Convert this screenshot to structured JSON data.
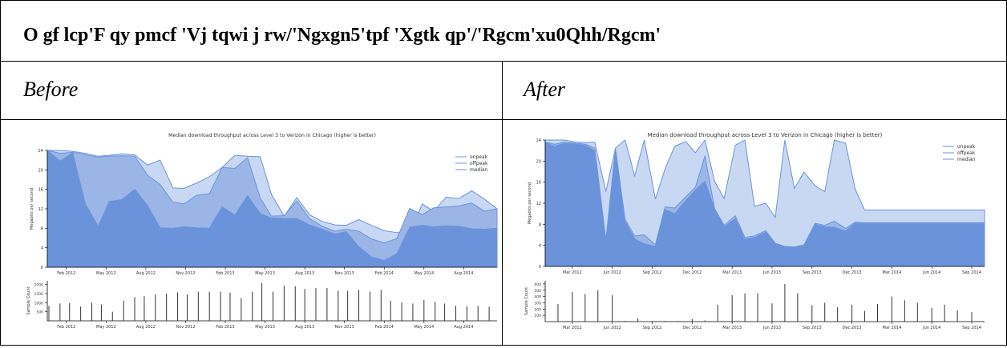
{
  "header": {
    "title": "O gf lcp'F qy pmcf 'Vj tqwi j rw/'Ngxgn5'tpf 'Xgtk qp'/'Rgcm'xu0Qhh/Rgcm'"
  },
  "columns": {
    "before_label": "Before",
    "after_label": "After"
  },
  "colors": {
    "onpeak": "#c9d8f2",
    "offpeak": "#9bb6e6",
    "median": "#6b93dc",
    "line": "#6b93dc",
    "bar": "#333333"
  },
  "chart_data": [
    {
      "type": "area",
      "panel": "before",
      "title": "Median download throughput across Level 3 to Verizon in Chicago (higher is better)",
      "ylabel": "Megabits per second",
      "ylim": [
        0,
        24
      ],
      "yticks": [
        0,
        4,
        8,
        12,
        16,
        20,
        24
      ],
      "xlim": [
        2011.96,
        2014.79
      ],
      "xticks": [
        {
          "label": "Feb 2012",
          "x": 2012.08
        },
        {
          "label": "May 2012",
          "x": 2012.33
        },
        {
          "label": "Aug 2012",
          "x": 2012.58
        },
        {
          "label": "Nov 2012",
          "x": 2012.83
        },
        {
          "label": "Feb 2013",
          "x": 2013.08
        },
        {
          "label": "May 2013",
          "x": 2013.33
        },
        {
          "label": "Aug 2013",
          "x": 2013.58
        },
        {
          "label": "Nov 2013",
          "x": 2013.83
        },
        {
          "label": "Feb 2014",
          "x": 2014.08
        },
        {
          "label": "May 2014",
          "x": 2014.33
        },
        {
          "label": "Aug 2014",
          "x": 2014.58
        }
      ],
      "legend": [
        "onpeak",
        "offpeak",
        "median"
      ],
      "legend_position": "top-right",
      "x": [
        2011.96,
        2012.04,
        2012.12,
        2012.2,
        2012.28,
        2012.35,
        2012.43,
        2012.51,
        2012.59,
        2012.67,
        2012.75,
        2012.82,
        2012.9,
        2012.98,
        2013.06,
        2013.14,
        2013.22,
        2013.3,
        2013.37,
        2013.45,
        2013.53,
        2013.61,
        2013.69,
        2013.77,
        2013.84,
        2013.92,
        2014.0,
        2014.08,
        2014.16,
        2014.24,
        2014.32,
        2014.39,
        2014.47,
        2014.55,
        2014.63,
        2014.71,
        2014.79
      ],
      "series": [
        {
          "name": "offpeak",
          "values": [
            24,
            24,
            23.8,
            23.4,
            22.8,
            23,
            23.3,
            23.1,
            21,
            22,
            16.3,
            16.2,
            17.3,
            18.6,
            20.5,
            23,
            22.8,
            22.7,
            15,
            10.5,
            14.3,
            10.8,
            9.4,
            8.7,
            8.6,
            9.8,
            8.6,
            7.5,
            7.1,
            7.2,
            13,
            11.5,
            14.4,
            14.1,
            15.7,
            14,
            12
          ]
        },
        {
          "name": "onpeak",
          "values": [
            24,
            21.8,
            23.5,
            13,
            8.4,
            13.5,
            13.9,
            16,
            12.7,
            8.1,
            8,
            8.3,
            8.1,
            8,
            12.4,
            10.7,
            14.7,
            11,
            10.1,
            10,
            10,
            8.7,
            7.8,
            6.8,
            7.3,
            4.2,
            2.1,
            1.4,
            2.8,
            8.2,
            8.6,
            8.3,
            8.5,
            8.4,
            7.9,
            7.8,
            8
          ]
        },
        {
          "name": "median",
          "values": [
            24,
            23.4,
            23.6,
            23.1,
            22.6,
            22.8,
            22.9,
            22.8,
            18.9,
            17,
            13.4,
            13,
            14.8,
            15.1,
            20.5,
            20.3,
            22.5,
            14.2,
            10.5,
            10.6,
            13.6,
            10,
            8.4,
            7.4,
            7.8,
            7.4,
            5.8,
            5,
            5.9,
            12.1,
            10.8,
            12.2,
            12.4,
            12.6,
            13.2,
            11.5,
            12
          ]
        }
      ],
      "sample_count": {
        "ylabel": "Sample Count",
        "ylim": [
          0,
          2200
        ],
        "yticks": [
          500,
          1000,
          1500,
          2000
        ],
        "x": [
          2011.97,
          2012.04,
          2012.1,
          2012.17,
          2012.24,
          2012.3,
          2012.37,
          2012.44,
          2012.51,
          2012.57,
          2012.64,
          2012.71,
          2012.78,
          2012.84,
          2012.91,
          2012.98,
          2013.05,
          2013.11,
          2013.18,
          2013.25,
          2013.31,
          2013.38,
          2013.45,
          2013.52,
          2013.58,
          2013.65,
          2013.72,
          2013.79,
          2013.85,
          2013.92,
          2013.99,
          2014.06,
          2014.12,
          2014.19,
          2014.26,
          2014.33,
          2014.4,
          2014.46,
          2014.53,
          2014.6,
          2014.67,
          2014.74
        ],
        "values": [
          820,
          950,
          980,
          780,
          1000,
          900,
          500,
          1100,
          1300,
          1350,
          1450,
          1500,
          1550,
          1450,
          1600,
          1600,
          1600,
          1550,
          1250,
          1600,
          2080,
          1600,
          1920,
          1900,
          1750,
          1800,
          1800,
          1650,
          1650,
          1700,
          1600,
          1700,
          1100,
          1000,
          950,
          1150,
          1050,
          950,
          830,
          800,
          820,
          780
        ]
      }
    },
    {
      "type": "area",
      "panel": "after",
      "title": "Median download throughput across Level 3 to Verizon in Chicago (higher is better)",
      "ylabel": "Megabits per second",
      "ylim": [
        0,
        24
      ],
      "yticks": [
        0,
        4,
        8,
        12,
        16,
        20,
        24
      ],
      "xlim": [
        2012.0,
        2014.75
      ],
      "xticks": [
        {
          "label": "Mar 2012",
          "x": 2012.17
        },
        {
          "label": "Jun 2012",
          "x": 2012.42
        },
        {
          "label": "Sep 2012",
          "x": 2012.67
        },
        {
          "label": "Dec 2012",
          "x": 2012.92
        },
        {
          "label": "Mar 2013",
          "x": 2013.17
        },
        {
          "label": "Jun 2013",
          "x": 2013.42
        },
        {
          "label": "Sep 2013",
          "x": 2013.67
        },
        {
          "label": "Dec 2013",
          "x": 2013.92
        },
        {
          "label": "Mar 2014",
          "x": 2014.17
        },
        {
          "label": "Jun 2014",
          "x": 2014.42
        },
        {
          "label": "Sep 2014",
          "x": 2014.67
        }
      ],
      "legend": [
        "onpeak",
        "offpeak",
        "median"
      ],
      "legend_position": "top-right",
      "x": [
        2012.0,
        2012.06,
        2012.12,
        2012.19,
        2012.25,
        2012.31,
        2012.38,
        2012.44,
        2012.5,
        2012.56,
        2012.62,
        2012.69,
        2012.75,
        2012.81,
        2012.88,
        2012.94,
        2013.0,
        2013.06,
        2013.12,
        2013.19,
        2013.25,
        2013.31,
        2013.38,
        2013.44,
        2013.5,
        2013.56,
        2013.62,
        2013.69,
        2013.75,
        2013.81,
        2013.88,
        2013.94,
        2014.0,
        2014.06,
        2014.12,
        2014.19,
        2014.25,
        2014.31,
        2014.38,
        2014.44,
        2014.5,
        2014.56,
        2014.62,
        2014.69,
        2014.75
      ],
      "series": [
        {
          "name": "offpeak",
          "values": [
            24,
            24,
            24,
            23.6,
            23.5,
            23.6,
            14.2,
            22.5,
            24,
            17.2,
            24,
            12.8,
            18.5,
            22.8,
            23.7,
            21.6,
            24,
            16.2,
            12.9,
            23,
            24,
            11.4,
            12,
            9.3,
            24,
            14.8,
            17.9,
            15.3,
            14.2,
            24,
            23.4,
            14.7,
            10.7,
            10.7,
            10.7,
            10.7,
            10.7,
            10.7,
            10.7,
            10.7,
            10.7,
            10.7,
            10.7,
            10.7,
            10.7
          ]
        },
        {
          "name": "onpeak",
          "values": [
            23.6,
            22.8,
            23.4,
            23.2,
            23,
            22,
            4.7,
            22,
            8.5,
            5.2,
            4.3,
            3.8,
            10.8,
            10,
            12.5,
            14.5,
            16.2,
            10.9,
            7.5,
            9.1,
            5.1,
            5.5,
            6.5,
            4.3,
            3.7,
            3.6,
            3.9,
            8,
            7.5,
            7.4,
            6.7,
            8.2,
            8.1,
            8.1,
            8.1,
            8.1,
            8.1,
            8.1,
            8.1,
            8.1,
            8.1,
            8.1,
            8.1,
            8.1,
            8.1
          ]
        },
        {
          "name": "median",
          "values": [
            23.6,
            23.2,
            23.6,
            23.4,
            23.2,
            22.5,
            5,
            22.4,
            8.9,
            5.8,
            6,
            4.1,
            11.3,
            11.1,
            13.2,
            15,
            21,
            11,
            7.8,
            9.6,
            5.5,
            5.8,
            6.8,
            4.4,
            3.8,
            3.7,
            4.1,
            8.2,
            7.8,
            8.6,
            7.2,
            8.4,
            8.3,
            8.3,
            8.3,
            8.3,
            8.3,
            8.3,
            8.3,
            8.3,
            8.3,
            8.3,
            8.3,
            8.3,
            8.3
          ]
        }
      ],
      "sample_count": {
        "ylabel": "Sample Count",
        "ylim": [
          0,
          650
        ],
        "yticks": [
          100,
          200,
          300,
          400,
          500,
          600
        ],
        "x": [
          2012.08,
          2012.17,
          2012.25,
          2012.33,
          2012.42,
          2012.5,
          2012.58,
          2012.67,
          2012.75,
          2012.83,
          2012.92,
          2013.0,
          2013.08,
          2013.17,
          2013.25,
          2013.33,
          2013.42,
          2013.5,
          2013.58,
          2013.67,
          2013.75,
          2013.83,
          2013.92,
          2014.0,
          2014.08,
          2014.17,
          2014.25,
          2014.33,
          2014.42,
          2014.5,
          2014.58,
          2014.67,
          2014.75
        ],
        "values": [
          280,
          470,
          440,
          500,
          420,
          10,
          50,
          10,
          10,
          10,
          40,
          20,
          270,
          420,
          450,
          450,
          290,
          600,
          450,
          260,
          300,
          230,
          270,
          170,
          280,
          400,
          340,
          300,
          220,
          270,
          180,
          150,
          0
        ]
      }
    }
  ]
}
